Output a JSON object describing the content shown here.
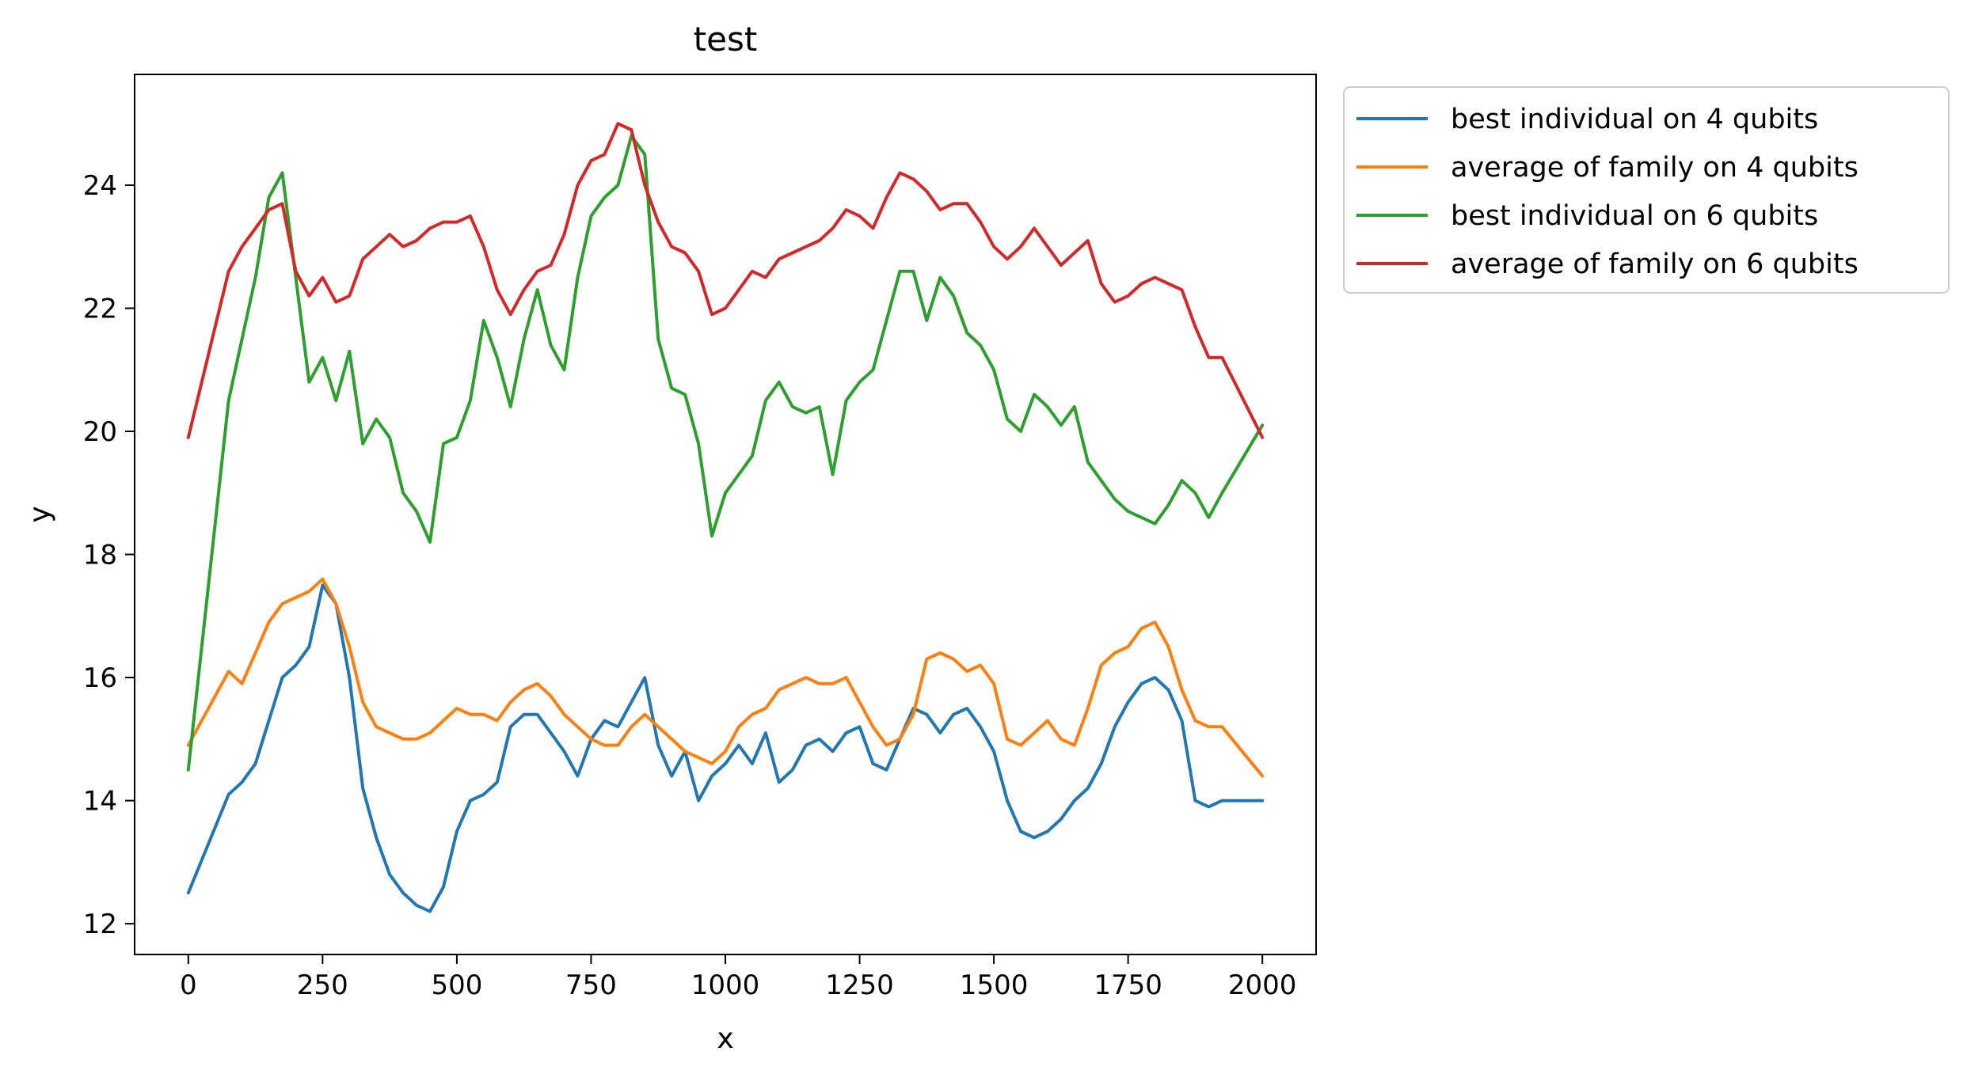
{
  "chart_data": {
    "type": "line",
    "title": "test",
    "xlabel": "x",
    "ylabel": "y",
    "xlim": [
      -100,
      2100
    ],
    "ylim": [
      11.5,
      25.8
    ],
    "xticks": [
      0,
      250,
      500,
      750,
      1000,
      1250,
      1500,
      1750,
      2000
    ],
    "yticks": [
      12,
      14,
      16,
      18,
      20,
      22,
      24
    ],
    "grid": false,
    "legend": "outside-upper-right",
    "series": [
      {
        "name": "best individual on 4 qubits",
        "color": "#1f77b4",
        "x": [
          0,
          75,
          100,
          125,
          150,
          175,
          200,
          225,
          250,
          275,
          300,
          325,
          350,
          375,
          400,
          425,
          450,
          475,
          500,
          525,
          550,
          575,
          600,
          625,
          650,
          675,
          700,
          725,
          750,
          775,
          800,
          825,
          850,
          875,
          900,
          925,
          950,
          975,
          1000,
          1025,
          1050,
          1075,
          1100,
          1125,
          1150,
          1175,
          1200,
          1225,
          1250,
          1275,
          1300,
          1325,
          1350,
          1375,
          1400,
          1425,
          1450,
          1475,
          1500,
          1525,
          1550,
          1575,
          1600,
          1625,
          1650,
          1675,
          1700,
          1725,
          1750,
          1775,
          1800,
          1825,
          1850,
          1875,
          1900,
          1925,
          2000
        ],
        "y": [
          12.5,
          14.1,
          14.3,
          14.6,
          15.3,
          16.0,
          16.2,
          16.5,
          17.5,
          17.2,
          16.0,
          14.2,
          13.4,
          12.8,
          12.5,
          12.3,
          12.2,
          12.6,
          13.5,
          14.0,
          14.1,
          14.3,
          15.2,
          15.4,
          15.4,
          15.1,
          14.8,
          14.4,
          15.0,
          15.3,
          15.2,
          15.6,
          16.0,
          14.9,
          14.4,
          14.8,
          14.0,
          14.4,
          14.6,
          14.9,
          14.6,
          15.1,
          14.3,
          14.5,
          14.9,
          15.0,
          14.8,
          15.1,
          15.2,
          14.6,
          14.5,
          15.0,
          15.5,
          15.4,
          15.1,
          15.4,
          15.5,
          15.2,
          14.8,
          14.0,
          13.5,
          13.4,
          13.5,
          13.7,
          14.0,
          14.2,
          14.6,
          15.2,
          15.6,
          15.9,
          16.0,
          15.8,
          15.3,
          14.0,
          13.9,
          14.0,
          14.0
        ]
      },
      {
        "name": "average of family on 4 qubits",
        "color": "#ff7f0e",
        "x": [
          0,
          75,
          100,
          125,
          150,
          175,
          200,
          225,
          250,
          275,
          300,
          325,
          350,
          375,
          400,
          425,
          450,
          475,
          500,
          525,
          550,
          575,
          600,
          625,
          650,
          675,
          700,
          725,
          750,
          775,
          800,
          825,
          850,
          875,
          900,
          925,
          950,
          975,
          1000,
          1025,
          1050,
          1075,
          1100,
          1125,
          1150,
          1175,
          1200,
          1225,
          1250,
          1275,
          1300,
          1325,
          1350,
          1375,
          1400,
          1425,
          1450,
          1475,
          1500,
          1525,
          1550,
          1575,
          1600,
          1625,
          1650,
          1675,
          1700,
          1725,
          1750,
          1775,
          1800,
          1825,
          1850,
          1875,
          1900,
          1925,
          2000
        ],
        "y": [
          14.9,
          16.1,
          15.9,
          16.4,
          16.9,
          17.2,
          17.3,
          17.4,
          17.6,
          17.2,
          16.5,
          15.6,
          15.2,
          15.1,
          15.0,
          15.0,
          15.1,
          15.3,
          15.5,
          15.4,
          15.4,
          15.3,
          15.6,
          15.8,
          15.9,
          15.7,
          15.4,
          15.2,
          15.0,
          14.9,
          14.9,
          15.2,
          15.4,
          15.2,
          15.0,
          14.8,
          14.7,
          14.6,
          14.8,
          15.2,
          15.4,
          15.5,
          15.8,
          15.9,
          16.0,
          15.9,
          15.9,
          16.0,
          15.6,
          15.2,
          14.9,
          15.0,
          15.4,
          16.3,
          16.4,
          16.3,
          16.1,
          16.2,
          15.9,
          15.0,
          14.9,
          15.1,
          15.3,
          15.0,
          14.9,
          15.5,
          16.2,
          16.4,
          16.5,
          16.8,
          16.9,
          16.5,
          15.8,
          15.3,
          15.2,
          15.2,
          14.4
        ]
      },
      {
        "name": "best individual on 6 qubits",
        "color": "#2ca02c",
        "x": [
          0,
          75,
          100,
          125,
          150,
          175,
          200,
          225,
          250,
          275,
          300,
          325,
          350,
          375,
          400,
          425,
          450,
          475,
          500,
          525,
          550,
          575,
          600,
          625,
          650,
          675,
          700,
          725,
          750,
          775,
          800,
          825,
          850,
          875,
          900,
          925,
          950,
          975,
          1000,
          1025,
          1050,
          1075,
          1100,
          1125,
          1150,
          1175,
          1200,
          1225,
          1250,
          1275,
          1300,
          1325,
          1350,
          1375,
          1400,
          1425,
          1450,
          1475,
          1500,
          1525,
          1550,
          1575,
          1600,
          1625,
          1650,
          1675,
          1700,
          1725,
          1750,
          1775,
          1800,
          1825,
          1850,
          1875,
          1900,
          1925,
          2000
        ],
        "y": [
          14.5,
          20.5,
          21.5,
          22.5,
          23.8,
          24.2,
          22.5,
          20.8,
          21.2,
          20.5,
          21.3,
          19.8,
          20.2,
          19.9,
          19.0,
          18.7,
          18.2,
          19.8,
          19.9,
          20.5,
          21.8,
          21.2,
          20.4,
          21.5,
          22.3,
          21.4,
          21.0,
          22.5,
          23.5,
          23.8,
          24.0,
          24.8,
          24.5,
          21.5,
          20.7,
          20.6,
          19.8,
          18.3,
          19.0,
          19.3,
          19.6,
          20.5,
          20.8,
          20.4,
          20.3,
          20.4,
          19.3,
          20.5,
          20.8,
          21.0,
          21.8,
          22.6,
          22.6,
          21.8,
          22.5,
          22.2,
          21.6,
          21.4,
          21.0,
          20.2,
          20.0,
          20.6,
          20.4,
          20.1,
          20.4,
          19.5,
          19.2,
          18.9,
          18.7,
          18.6,
          18.5,
          18.8,
          19.2,
          19.0,
          18.6,
          19.0,
          20.1
        ]
      },
      {
        "name": "average of family on 6 qubits",
        "color": "#d62728",
        "x": [
          0,
          75,
          100,
          125,
          150,
          175,
          200,
          225,
          250,
          275,
          300,
          325,
          350,
          375,
          400,
          425,
          450,
          475,
          500,
          525,
          550,
          575,
          600,
          625,
          650,
          675,
          700,
          725,
          750,
          775,
          800,
          825,
          850,
          875,
          900,
          925,
          950,
          975,
          1000,
          1025,
          1050,
          1075,
          1100,
          1125,
          1150,
          1175,
          1200,
          1225,
          1250,
          1275,
          1300,
          1325,
          1350,
          1375,
          1400,
          1425,
          1450,
          1475,
          1500,
          1525,
          1550,
          1575,
          1600,
          1625,
          1650,
          1675,
          1700,
          1725,
          1750,
          1775,
          1800,
          1825,
          1850,
          1875,
          1900,
          1925,
          2000
        ],
        "y": [
          19.9,
          22.6,
          23.0,
          23.3,
          23.6,
          23.7,
          22.6,
          22.2,
          22.5,
          22.1,
          22.2,
          22.8,
          23.0,
          23.2,
          23.0,
          23.1,
          23.3,
          23.4,
          23.4,
          23.5,
          23.0,
          22.3,
          21.9,
          22.3,
          22.6,
          22.7,
          23.2,
          24.0,
          24.4,
          24.5,
          25.0,
          24.9,
          24.0,
          23.4,
          23.0,
          22.9,
          22.6,
          21.9,
          22.0,
          22.3,
          22.6,
          22.5,
          22.8,
          22.9,
          23.0,
          23.1,
          23.3,
          23.6,
          23.5,
          23.3,
          23.8,
          24.2,
          24.1,
          23.9,
          23.6,
          23.7,
          23.7,
          23.4,
          23.0,
          22.8,
          23.0,
          23.3,
          23.0,
          22.7,
          22.9,
          23.1,
          22.4,
          22.1,
          22.2,
          22.4,
          22.5,
          22.4,
          22.3,
          21.7,
          21.2,
          21.2,
          19.9
        ]
      }
    ]
  }
}
